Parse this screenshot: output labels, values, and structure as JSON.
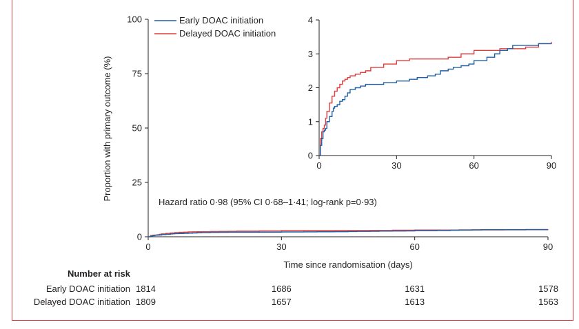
{
  "chart_data": [
    {
      "type": "line",
      "role": "main",
      "title": "",
      "xlabel": "Time since randomisation (days)",
      "ylabel": "Proportion with primary outcome (%)",
      "xlim": [
        0,
        90
      ],
      "ylim": [
        0,
        100
      ],
      "xticks": [
        0,
        30,
        60,
        90
      ],
      "yticks": [
        0,
        25,
        50,
        75,
        100
      ],
      "legend": [
        "Early DOAC initiation",
        "Delayed DOAC initiation"
      ],
      "annotation": "Hazard ratio 0·98 (95% CI 0·68–1·41; log-rank p=0·93)",
      "series": [
        {
          "name": "Early DOAC initiation",
          "color": "#1f5fa8",
          "x": [
            0,
            0.5,
            1,
            1.5,
            2,
            2.5,
            3,
            4,
            5,
            5.5,
            6,
            7,
            8,
            9,
            10,
            11,
            12,
            14,
            16,
            18,
            25,
            30,
            35,
            38,
            42,
            45,
            47,
            50,
            52,
            55,
            58,
            60,
            65,
            68,
            70,
            73,
            75,
            85,
            90
          ],
          "y": [
            0,
            0.3,
            0.5,
            0.7,
            0.75,
            0.8,
            1.0,
            1.15,
            1.3,
            1.4,
            1.45,
            1.5,
            1.6,
            1.65,
            1.75,
            1.85,
            1.95,
            2.0,
            2.05,
            2.1,
            2.15,
            2.2,
            2.25,
            2.3,
            2.35,
            2.4,
            2.5,
            2.55,
            2.6,
            2.65,
            2.7,
            2.8,
            2.9,
            3.0,
            3.1,
            3.15,
            3.25,
            3.3,
            3.3
          ]
        },
        {
          "name": "Delayed DOAC initiation",
          "color": "#e23b3b",
          "x": [
            0,
            0.5,
            1,
            1.5,
            2,
            2.5,
            3,
            4,
            5,
            6,
            7,
            8,
            9,
            10,
            11,
            12,
            14,
            16,
            18,
            20,
            25,
            30,
            35,
            45,
            50,
            55,
            60,
            70,
            80,
            85,
            90
          ],
          "y": [
            0,
            0.5,
            0.7,
            0.8,
            0.9,
            1.1,
            1.3,
            1.55,
            1.75,
            1.9,
            2.0,
            2.1,
            2.2,
            2.25,
            2.3,
            2.35,
            2.4,
            2.45,
            2.5,
            2.6,
            2.7,
            2.8,
            2.85,
            2.85,
            2.9,
            3.0,
            3.1,
            3.15,
            3.2,
            3.3,
            3.35
          ]
        }
      ]
    },
    {
      "type": "line",
      "role": "inset",
      "title": "",
      "xlabel": "",
      "ylabel": "",
      "xlim": [
        0,
        90
      ],
      "ylim": [
        0,
        4
      ],
      "xticks": [
        0,
        30,
        60,
        90
      ],
      "yticks": [
        0,
        1,
        2,
        3,
        4
      ],
      "series_ref": [
        "Early DOAC initiation",
        "Delayed DOAC initiation"
      ]
    }
  ],
  "risk_table": {
    "title": "Number at risk",
    "rows": [
      {
        "label": "Early DOAC initiation",
        "values": [
          "1814",
          "1686",
          "1631",
          "1578"
        ]
      },
      {
        "label": "Delayed DOAC initiation",
        "values": [
          "1809",
          "1657",
          "1613",
          "1563"
        ]
      }
    ]
  }
}
